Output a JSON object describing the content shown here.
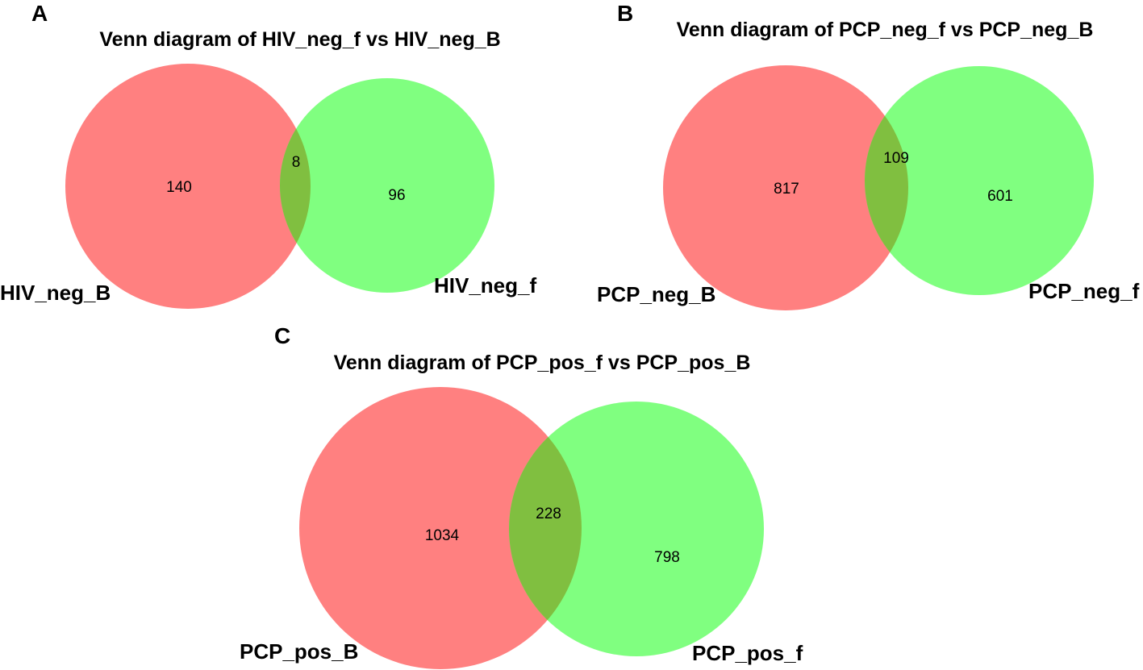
{
  "colors": {
    "left_set": "#ff8080",
    "right_set": "#80ff80",
    "overlap": "#80bf40"
  },
  "panels": [
    {
      "letter": "A",
      "title": "Venn diagram of HIV_neg_f vs HIV_neg_B",
      "left_set": {
        "label": "HIV_neg_B",
        "count": "140"
      },
      "right_set": {
        "label": "HIV_neg_f",
        "count": "96"
      },
      "overlap_count": "8"
    },
    {
      "letter": "B",
      "title": "Venn diagram of PCP_neg_f vs PCP_neg_B",
      "left_set": {
        "label": "PCP_neg_B",
        "count": "817"
      },
      "right_set": {
        "label": "PCP_neg_f",
        "count": "601"
      },
      "overlap_count": "109"
    },
    {
      "letter": "C",
      "title": "Venn diagram of PCP_pos_f vs PCP_pos_B",
      "left_set": {
        "label": "PCP_pos_B",
        "count": "1034"
      },
      "right_set": {
        "label": "PCP_pos_f",
        "count": "798"
      },
      "overlap_count": "228"
    }
  ]
}
